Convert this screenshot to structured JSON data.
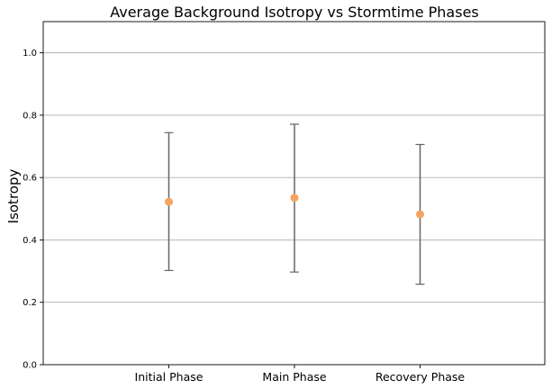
{
  "chart_data": {
    "type": "scatter",
    "title": "Average Background Isotropy vs Stormtime Phases",
    "xlabel": "",
    "ylabel": "Isotropy",
    "categories": [
      "Initial Phase",
      "Main Phase",
      "Recovery Phase"
    ],
    "series": [
      {
        "values": [
          0.522,
          0.535,
          0.482
        ],
        "lower": [
          0.302,
          0.297,
          0.258
        ],
        "upper": [
          0.744,
          0.771,
          0.706
        ]
      }
    ],
    "ylim": [
      0,
      1.1
    ],
    "yticks": [
      "0.0",
      "0.2",
      "0.4",
      "0.6",
      "0.8",
      "1.0"
    ],
    "grid": "horizontal",
    "colors": {
      "marker": "#f4a460",
      "errorbar": "#666666",
      "grid": "#b0b0b0"
    }
  }
}
